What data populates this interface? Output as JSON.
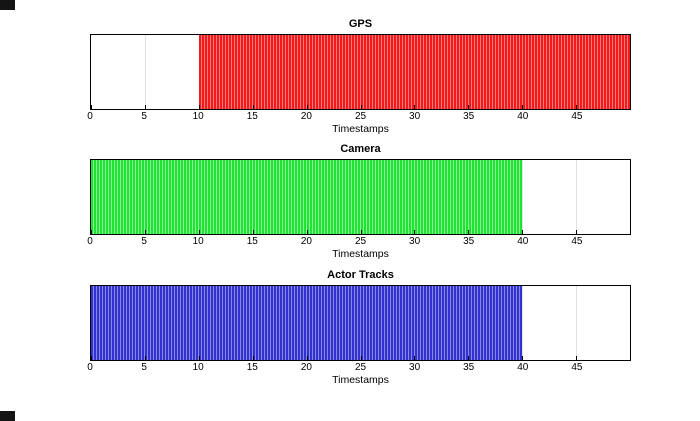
{
  "figure": {
    "background": "#ffffff",
    "corner_artifact_color": "#141414"
  },
  "chart_data": [
    {
      "type": "area",
      "style": "dense vertical event lines (raster band)",
      "title": "GPS",
      "xlabel": "Timestamps",
      "xlim": [
        0,
        50
      ],
      "xticks": [
        0,
        5,
        10,
        15,
        20,
        25,
        30,
        35,
        40,
        45
      ],
      "band": {
        "start": 10,
        "end": 50
      },
      "color": "#f21b1b",
      "stripe_highlight": "#fb7a7a",
      "grid": true,
      "legend": "none"
    },
    {
      "type": "area",
      "style": "dense vertical event lines (raster band)",
      "title": "Camera",
      "xlabel": "Timestamps",
      "xlim": [
        0,
        50
      ],
      "xticks": [
        0,
        5,
        10,
        15,
        20,
        25,
        30,
        35,
        40,
        45
      ],
      "band": {
        "start": 0,
        "end": 40
      },
      "color": "#1fe232",
      "stripe_highlight": "#8bf497",
      "grid": true,
      "legend": "none"
    },
    {
      "type": "area",
      "style": "dense vertical event lines (raster band)",
      "title": "Actor Tracks",
      "xlabel": "Timestamps",
      "xlim": [
        0,
        50
      ],
      "xticks": [
        0,
        5,
        10,
        15,
        20,
        25,
        30,
        35,
        40,
        45
      ],
      "band": {
        "start": 0,
        "end": 40
      },
      "color": "#3232cf",
      "stripe_highlight": "#8989e3",
      "grid": true,
      "legend": "none"
    }
  ]
}
